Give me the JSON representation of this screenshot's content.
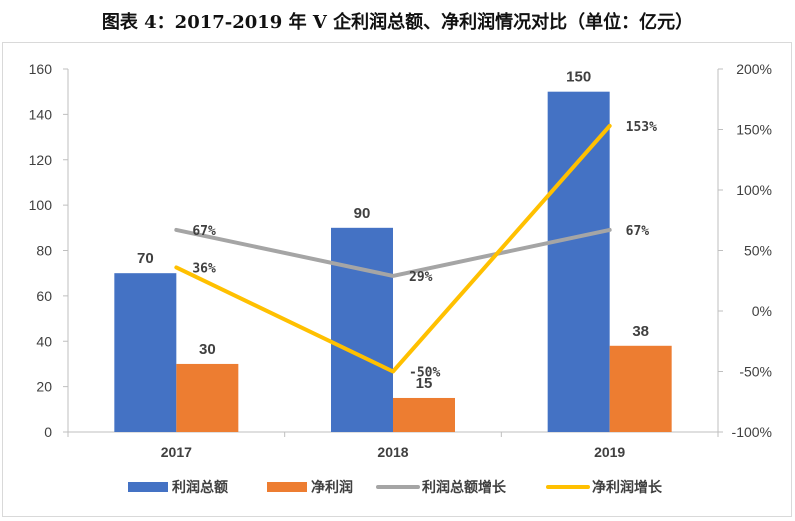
{
  "title": "图表 4：2017-2019 年 V 企利润总额、净利润情况对比（单位：亿元）",
  "colors": {
    "total_profit": "#4472C4",
    "net_profit": "#ED7D31",
    "total_growth": "#A5A5A5",
    "net_growth": "#FFC000"
  },
  "chart_data": {
    "type": "bar",
    "title": "图表 4：2017-2019 年 V 企利润总额、净利润情况对比（单位：亿元）",
    "categories": [
      "2017",
      "2018",
      "2019"
    ],
    "series": [
      {
        "name": "利润总额",
        "type": "bar",
        "axis": "left",
        "values": [
          70,
          90,
          150
        ],
        "labels": [
          "70",
          "90",
          "150"
        ]
      },
      {
        "name": "净利润",
        "type": "bar",
        "axis": "left",
        "values": [
          30,
          15,
          38
        ],
        "labels": [
          "30",
          "15",
          "38"
        ]
      },
      {
        "name": "利润总额增长",
        "type": "line",
        "axis": "right",
        "values": [
          67,
          29,
          67
        ],
        "labels": [
          "67%",
          "29%",
          "67%"
        ]
      },
      {
        "name": "净利润增长",
        "type": "line",
        "axis": "right",
        "values": [
          36,
          -50,
          153
        ],
        "labels": [
          "36%",
          "-50%",
          "153%"
        ]
      }
    ],
    "ylim": [
      0,
      160
    ],
    "y_ticks": [
      "0",
      "20",
      "40",
      "60",
      "80",
      "100",
      "120",
      "140",
      "160"
    ],
    "y2lim": [
      -100,
      200
    ],
    "y2_ticks": [
      "-100%",
      "-50%",
      "0%",
      "50%",
      "100%",
      "150%",
      "200%"
    ],
    "grid": false,
    "legend_position": "bottom"
  }
}
